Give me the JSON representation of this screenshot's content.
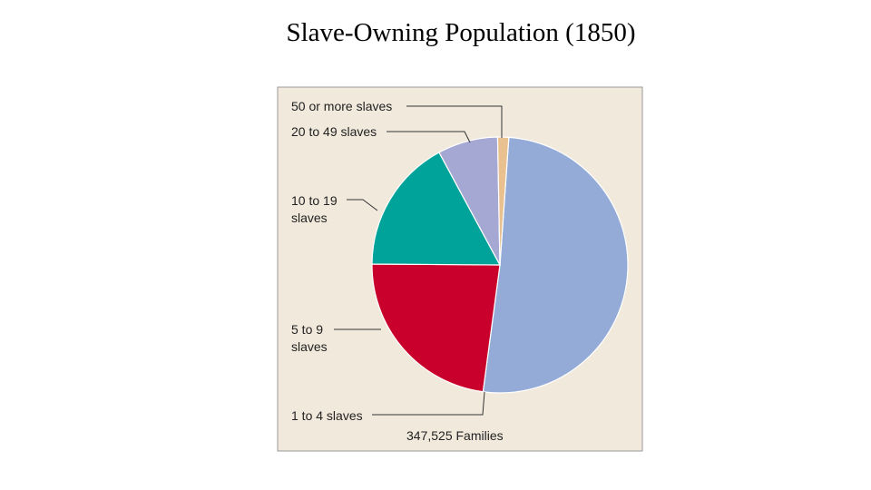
{
  "chart_data": {
    "type": "pie",
    "title": "Slave-Owning Population (1850)",
    "categories": [
      "1 to 4 slaves",
      "5 to 9 slaves",
      "10 to 19 slaves",
      "20 to 49 slaves",
      "50 or more slaves"
    ],
    "values": [
      51,
      23,
      17,
      7.6,
      1.4
    ],
    "colors": [
      "#93abd6",
      "#c8002b",
      "#00a39a",
      "#a6a8d4",
      "#e9c08f"
    ],
    "note": "347,525 Families"
  }
}
